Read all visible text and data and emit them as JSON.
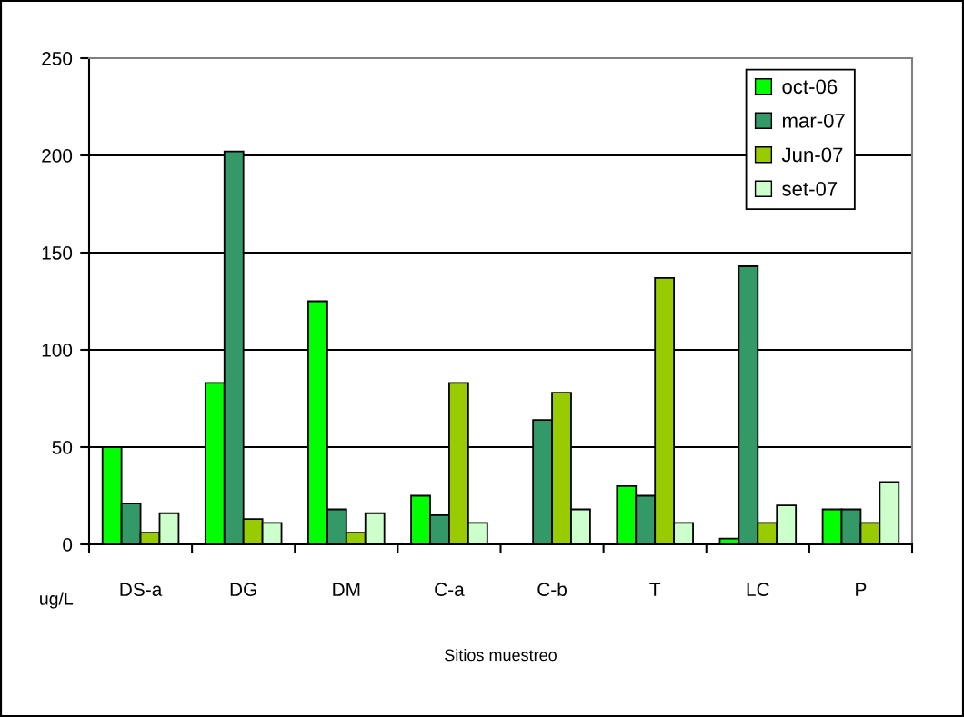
{
  "chart_data": {
    "type": "bar",
    "xlabel": "Sitios muestreo",
    "ylabel": "ug/L",
    "categories": [
      "DS-a",
      "DG",
      "DM",
      "C-a",
      "C-b",
      "T",
      "LC",
      "P"
    ],
    "series": [
      {
        "name": "oct-06",
        "color": "#00ff00",
        "values": [
          50,
          83,
          125,
          25,
          null,
          30,
          3,
          18
        ]
      },
      {
        "name": "mar-07",
        "color": "#339966",
        "values": [
          21,
          202,
          18,
          15,
          64,
          25,
          143,
          18
        ]
      },
      {
        "name": "Jun-07",
        "color": "#99cc00",
        "values": [
          6,
          13,
          6,
          83,
          78,
          137,
          11,
          11
        ]
      },
      {
        "name": "set-07",
        "color": "#ccffcc",
        "values": [
          16,
          11,
          16,
          11,
          18,
          11,
          20,
          32
        ]
      }
    ],
    "ylim": [
      0,
      250
    ],
    "yticks": [
      0,
      50,
      100,
      150,
      200,
      250
    ],
    "grid": "y",
    "legend": "top right"
  }
}
